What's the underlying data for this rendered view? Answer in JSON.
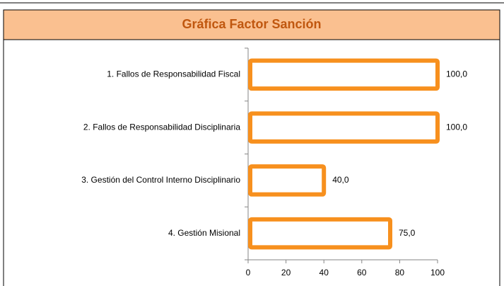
{
  "chart_data": {
    "type": "barh",
    "title": "Gráfica Factor Sanción",
    "categories": [
      "1. Fallos de Responsabilidad Fiscal",
      "2. Fallos de Responsabilidad Disciplinaria",
      "3. Gestión del Control Interno Disciplinario",
      "4. Gestión Misional"
    ],
    "values": [
      100,
      100,
      40,
      75
    ],
    "value_labels": [
      "100,0",
      "100,0",
      "40,0",
      "75,0"
    ],
    "color": "#f7901e",
    "xlim": [
      0,
      100
    ],
    "xticks": [
      0,
      20,
      40,
      60,
      80,
      100
    ],
    "grid": false
  }
}
